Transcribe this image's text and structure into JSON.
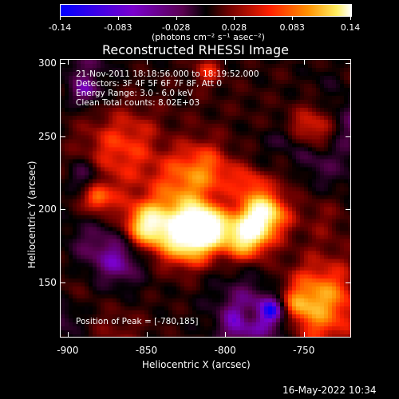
{
  "colorbar": {
    "tick_labels": [
      "-0.14",
      "-0.083",
      "-0.028",
      "0.028",
      "0.083",
      "0.14"
    ],
    "units": "(photons cm⁻² s⁻¹ asec⁻²)",
    "range": [
      -0.14,
      0.14
    ],
    "colors": [
      "#0000ff",
      "#7a00cc",
      "#5a0050",
      "#000000",
      "#700000",
      "#ff2000",
      "#ff9000",
      "#ffee60",
      "#ffffff"
    ]
  },
  "chart_data": {
    "type": "heatmap",
    "title": "Reconstructed RHESSI Image",
    "xlabel": "Heliocentric X (arcsec)",
    "ylabel": "Heliocentric Y (arcsec)",
    "xlim": [
      -905,
      -720
    ],
    "ylim": [
      112,
      303
    ],
    "xticks": [
      "-900",
      "-850",
      "-800",
      "-750"
    ],
    "yticks": [
      "150",
      "200",
      "250",
      "300"
    ],
    "xtick_values": [
      -900,
      -850,
      -800,
      -750
    ],
    "ytick_values": [
      150,
      200,
      250,
      300
    ],
    "peak_position": [
      -780,
      185
    ]
  },
  "annotations": {
    "time": "21-Nov-2011 18:18:56.000 to 18:19:52.000",
    "detectors": "Detectors: 3F 4F 5F 6F 7F 8F, Att 0",
    "energy": "Energy Range: 3.0 - 6.0 keV",
    "clean": "Clean    Total counts: 8.02E+03",
    "peak": "Position of Peak = [-780,185]"
  },
  "timestamp": "16-May-2022 10:34"
}
